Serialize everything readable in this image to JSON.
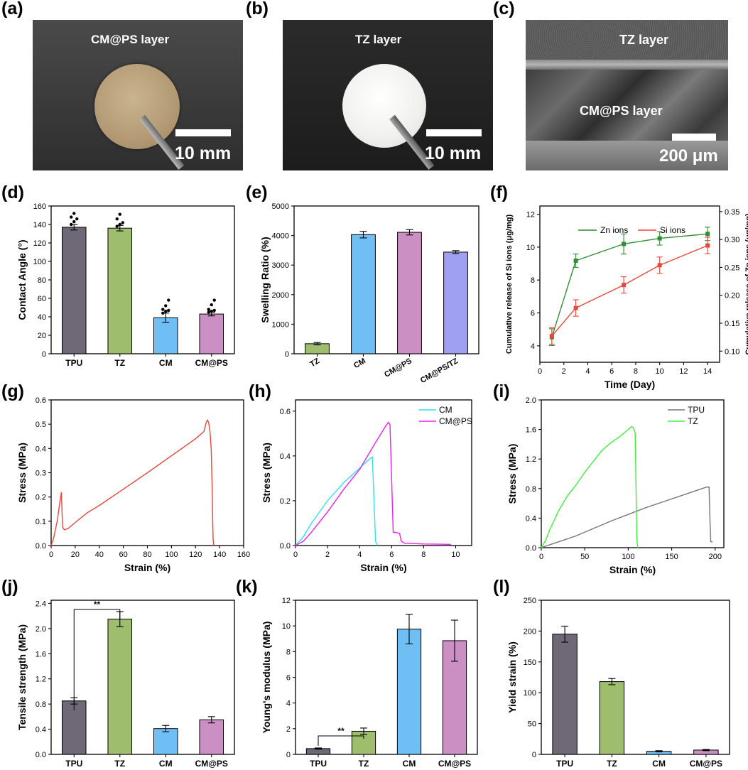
{
  "panel_labels": [
    "(a)",
    "(b)",
    "(c)",
    "(d)",
    "(e)",
    "(f)",
    "(g)",
    "(h)",
    "(i)",
    "(j)",
    "(k)",
    "(l)"
  ],
  "photos": {
    "a": {
      "caption": "CM@PS layer",
      "scale_bar": "10 mm",
      "sample_color": "#b79e7c",
      "background": "#3c3c3c"
    },
    "b": {
      "caption": "TZ layer",
      "scale_bar": "10 mm",
      "sample_color": "#f2f2f0",
      "background": "#232323"
    },
    "c": {
      "caption_top": "TZ layer",
      "caption_mid": "CM@PS layer",
      "scale_bar": "200 μm",
      "background": "#5a5a5a"
    }
  },
  "colors": {
    "TPU": "#6f6877",
    "TZ": "#9ebe6e",
    "CM": "#6fbff5",
    "CM@PS": "#cc8fc3",
    "CM@PS/TZ": "#9fa0f0",
    "zn": "#2f8f35",
    "si": "#e8473b",
    "red": "#e8473b",
    "cyan": "#2fe3f0",
    "magenta": "#f020f0",
    "gray": "#777777",
    "green": "#3ef03a"
  },
  "chart_data": [
    {
      "id": "d",
      "type": "bar",
      "title": "",
      "ylabel": "Contact Angle (°)",
      "categories": [
        "TPU",
        "TZ",
        "CM",
        "CM@PS"
      ],
      "values": [
        137,
        136,
        39,
        43
      ],
      "errors": [
        3,
        3,
        5,
        2
      ],
      "ylim": [
        0,
        160
      ],
      "yticks": [
        0,
        20,
        40,
        60,
        80,
        100,
        120,
        140,
        160
      ],
      "ytick_labels": [
        "0",
        "20",
        "40",
        "60",
        "80",
        "100",
        "120",
        "140",
        "160"
      ]
    },
    {
      "id": "e",
      "type": "bar",
      "ylabel": "Swelling Ratio (%)",
      "categories": [
        "TZ",
        "CM",
        "CM@PS",
        "CM@PS/TZ"
      ],
      "values": [
        340,
        4030,
        4110,
        3440
      ],
      "errors": [
        40,
        110,
        90,
        50
      ],
      "ylim": [
        0,
        5000
      ],
      "yticks": [
        0,
        1000,
        2000,
        3000,
        4000,
        5000
      ],
      "ytick_labels": [
        "0",
        "1000",
        "2000",
        "3000",
        "4000",
        "5000"
      ]
    },
    {
      "id": "f",
      "type": "line",
      "xlabel": "Time (Day)",
      "ylabel_left": "Cumulative release of Si ions (μg/mg)",
      "ylabel_right": "Cumulative release of Zn ions (μg/mg)",
      "x": [
        1,
        3,
        7,
        10,
        14
      ],
      "series": [
        {
          "name": "Zn ions",
          "axis": "right",
          "values": [
            0.125,
            0.262,
            0.292,
            0.302,
            0.31
          ],
          "errors": [
            0.015,
            0.012,
            0.018,
            0.012,
            0.012
          ]
        },
        {
          "name": "Si ions",
          "axis": "left",
          "values": [
            4.6,
            6.3,
            7.7,
            8.9,
            10.1
          ],
          "errors": [
            0.5,
            0.5,
            0.5,
            0.5,
            0.5
          ]
        }
      ],
      "xlim": [
        0,
        15
      ],
      "xticks": [
        0,
        2,
        4,
        6,
        8,
        10,
        12,
        14
      ],
      "xtick_labels": [
        "0",
        "2",
        "4",
        "6",
        "8",
        "10",
        "12",
        "14"
      ],
      "ylim_left": [
        3,
        12.5
      ],
      "yticks_left": [
        4,
        6,
        8,
        10,
        12
      ],
      "ytick_labels_left": [
        "4",
        "6",
        "8",
        "10",
        "12"
      ],
      "ylim_right": [
        0.08,
        0.36
      ],
      "yticks_right": [
        0.1,
        0.15,
        0.2,
        0.25,
        0.3,
        0.35
      ],
      "ytick_labels_right": [
        "0.10",
        "0.15",
        "0.20",
        "0.25",
        "0.30",
        "0.35"
      ]
    },
    {
      "id": "g",
      "type": "line",
      "xlabel": "Strain (%)",
      "ylabel": "Stress (MPa)",
      "series": [
        {
          "name": "",
          "x": [
            0,
            2,
            5,
            7,
            8.5,
            9.5,
            11,
            14,
            20,
            30,
            40,
            60,
            80,
            100,
            120,
            127,
            129,
            130,
            131,
            132,
            133,
            133.8,
            134.2,
            134.6,
            135
          ],
          "y": [
            0,
            0.03,
            0.1,
            0.17,
            0.22,
            0.075,
            0.065,
            0.07,
            0.095,
            0.135,
            0.165,
            0.232,
            0.3,
            0.37,
            0.44,
            0.47,
            0.51,
            0.517,
            0.505,
            0.47,
            0.4,
            0.25,
            0.12,
            0.03,
            0
          ]
        }
      ],
      "xlim": [
        0,
        160
      ],
      "xticks": [
        0,
        20,
        40,
        60,
        80,
        100,
        120,
        140,
        160
      ],
      "xtick_labels": [
        "0",
        "20",
        "40",
        "60",
        "80",
        "100",
        "120",
        "140",
        "160"
      ],
      "ylim": [
        0,
        0.6
      ],
      "yticks": [
        0,
        0.1,
        0.2,
        0.3,
        0.4,
        0.5,
        0.6
      ],
      "ytick_labels": [
        "0.0",
        "0.1",
        "0.2",
        "0.3",
        "0.4",
        "0.5",
        "0.6"
      ]
    },
    {
      "id": "h",
      "type": "line",
      "xlabel": "Strain (%)",
      "ylabel": "Stress (MPa)",
      "series": [
        {
          "name": "CM",
          "x": [
            0,
            0.5,
            1,
            2,
            3,
            4,
            4.6,
            4.8,
            4.9,
            5.0,
            5.1
          ],
          "y": [
            0,
            0.04,
            0.1,
            0.2,
            0.28,
            0.345,
            0.385,
            0.395,
            0.2,
            0.02,
            0
          ]
        },
        {
          "name": "CM@PS",
          "x": [
            0,
            0.5,
            1,
            2,
            3,
            4,
            5,
            5.6,
            5.8,
            5.9,
            6.0,
            6.1,
            6.5,
            6.6,
            6.8,
            7,
            8,
            9,
            9.7
          ],
          "y": [
            0,
            0.02,
            0.06,
            0.15,
            0.25,
            0.34,
            0.46,
            0.53,
            0.55,
            0.54,
            0.3,
            0.06,
            0.055,
            0.02,
            0.01,
            0.01,
            0.007,
            0.006,
            0.005
          ]
        }
      ],
      "legend": [
        "CM",
        "CM@PS"
      ],
      "xlim": [
        0,
        11
      ],
      "xticks": [
        0,
        2,
        4,
        6,
        8,
        10
      ],
      "xtick_labels": [
        "0",
        "2",
        "4",
        "6",
        "8",
        "10"
      ],
      "ylim": [
        0,
        0.65
      ],
      "yticks": [
        0,
        0.2,
        0.4,
        0.6
      ],
      "ytick_labels": [
        "0.0",
        "0.2",
        "0.4",
        "0.6"
      ]
    },
    {
      "id": "i",
      "type": "line",
      "xlabel": "Strain (%)",
      "ylabel": "Stress (MPa)",
      "series": [
        {
          "name": "TPU",
          "x": [
            0,
            5,
            10,
            20,
            40,
            60,
            80,
            100,
            120,
            140,
            160,
            180,
            190,
            193,
            194,
            195,
            197
          ],
          "y": [
            0,
            0.02,
            0.04,
            0.08,
            0.16,
            0.26,
            0.36,
            0.45,
            0.54,
            0.62,
            0.7,
            0.78,
            0.82,
            0.82,
            0.4,
            0.08,
            0.08
          ]
        },
        {
          "name": "TZ",
          "x": [
            0,
            5,
            10,
            20,
            30,
            40,
            50,
            60,
            70,
            80,
            90,
            100,
            104,
            106,
            108,
            109,
            110,
            111
          ],
          "y": [
            0,
            0.1,
            0.25,
            0.5,
            0.7,
            0.85,
            1.02,
            1.17,
            1.32,
            1.42,
            1.5,
            1.6,
            1.64,
            1.62,
            1.55,
            0.8,
            0.1,
            0
          ]
        }
      ],
      "legend": [
        "TPU",
        "TZ"
      ],
      "xlim": [
        0,
        210
      ],
      "xticks": [
        0,
        50,
        100,
        150,
        200
      ],
      "xtick_labels": [
        "0",
        "50",
        "100",
        "150",
        "200"
      ],
      "ylim": [
        0,
        2.0
      ],
      "yticks": [
        0,
        0.4,
        0.8,
        1.2,
        1.6,
        2.0
      ],
      "ytick_labels": [
        "0.0",
        "0.4",
        "0.8",
        "1.2",
        "1.6",
        "2.0"
      ]
    },
    {
      "id": "j",
      "type": "bar",
      "ylabel": "Tensile strength (MPa)",
      "categories": [
        "TPU",
        "TZ",
        "CM",
        "CM@PS"
      ],
      "values": [
        0.85,
        2.15,
        0.41,
        0.55
      ],
      "errors": [
        0.05,
        0.12,
        0.05,
        0.05
      ],
      "ylim": [
        0,
        2.45
      ],
      "yticks": [
        0,
        0.4,
        0.8,
        1.2,
        1.6,
        2.0,
        2.4
      ],
      "ytick_labels": [
        "0.0",
        "0.4",
        "0.8",
        "1.2",
        "1.6",
        "2.0",
        "2.4"
      ],
      "significance": "**"
    },
    {
      "id": "k",
      "type": "bar",
      "ylabel": "Young's modulus (MPa)",
      "categories": [
        "TPU",
        "TZ",
        "CM",
        "CM@PS"
      ],
      "values": [
        0.45,
        1.8,
        9.75,
        8.85
      ],
      "errors": [
        0.05,
        0.25,
        1.15,
        1.6
      ],
      "ylim": [
        0,
        12
      ],
      "yticks": [
        0,
        2,
        4,
        6,
        8,
        10,
        12
      ],
      "ytick_labels": [
        "0",
        "2",
        "4",
        "6",
        "8",
        "10",
        "12"
      ],
      "significance": "**"
    },
    {
      "id": "l",
      "type": "bar",
      "ylabel": "Yield strain (%)",
      "categories": [
        "TPU",
        "TZ",
        "CM",
        "CM@PS"
      ],
      "values": [
        195,
        118,
        5,
        7
      ],
      "errors": [
        13,
        5,
        1,
        1
      ],
      "ylim": [
        0,
        250
      ],
      "yticks": [
        0,
        50,
        100,
        150,
        200,
        250
      ],
      "ytick_labels": [
        "0",
        "50",
        "100",
        "150",
        "200",
        "250"
      ]
    }
  ]
}
